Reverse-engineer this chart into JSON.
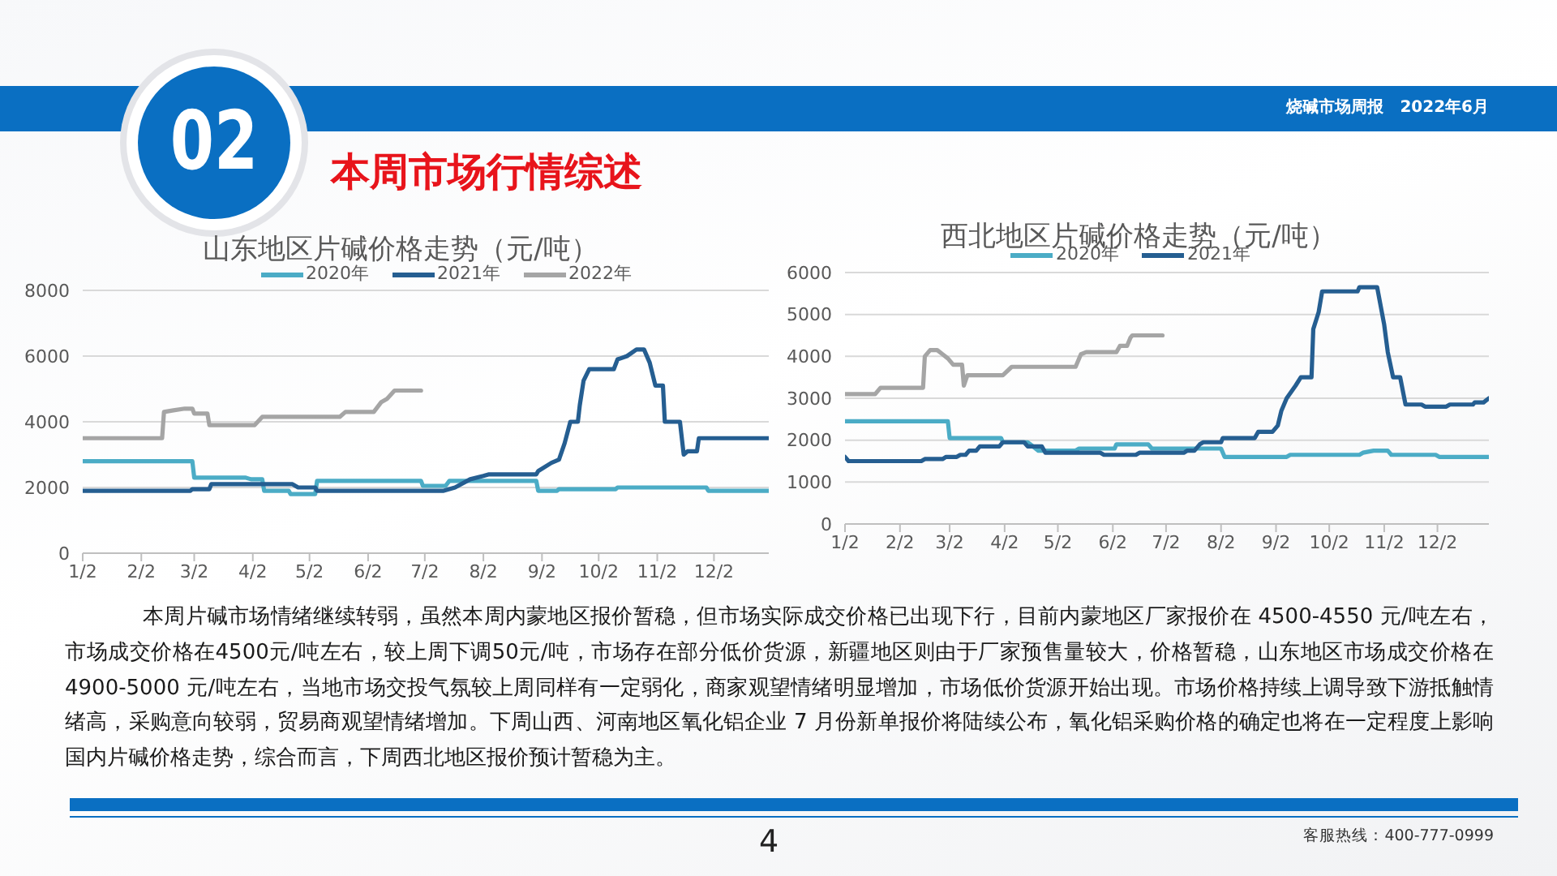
{
  "chart_data": [
    {
      "type": "other",
      "title": "本周市场行情综述",
      "annotations": [
        "02",
        "烧碱市场周报　2022年6月",
        "本周片碱市场情绪继续转弱，虽然本周内蒙地区报价暂稳，但市场实际成交价格已出现下行，目前内蒙地区厂家报价在 4500-4550 元/吨左右，市场成交价格在4500元/吨左右，较上周下调50元/吨，市场存在部分低价货源，新疆地区则由于厂家预售量较大，价格暂稳，山东地区市场成交价格在4900-5000 元/吨左右，当地市场交投气氛较上周同样有一定弱化，商家观望情绪明显增加，市场低价货源开始出现。市场价格持续上调导致下游抵触情绪高，采购意向较弱，贸易商观望情绪增加。下周山西、河南地区氧化铝企业 7 月份新单报价将陆续公布，氧化铝采购价格的确定也将在一定程度上影响国内片碱价格走势，综合而言，下周西北地区报价预计暂稳为主。",
        "4",
        "客服热线：400-777-0999"
      ]
    },
    {
      "type": "line",
      "title": "山东地区片碱价格走势（元/吨）",
      "legend": "top",
      "grid": "y",
      "xlim": [
        "--01-02",
        "--12-31"
      ],
      "xticks": [
        {
          "value": "--01-02",
          "label": "1/2"
        },
        {
          "value": "--02-02",
          "label": "2/2"
        },
        {
          "value": "--03-02",
          "label": "3/2"
        },
        {
          "value": "--04-02",
          "label": "4/2"
        },
        {
          "value": "--05-02",
          "label": "5/2"
        },
        {
          "value": "--06-02",
          "label": "6/2"
        },
        {
          "value": "--07-02",
          "label": "7/2"
        },
        {
          "value": "--08-02",
          "label": "8/2"
        },
        {
          "value": "--09-02",
          "label": "9/2"
        },
        {
          "value": "--10-02",
          "label": "10/2"
        },
        {
          "value": "--11-02",
          "label": "11/2"
        },
        {
          "value": "--12-02",
          "label": "12/2"
        }
      ],
      "ylim": [
        0,
        8000
      ],
      "yticks": [
        0,
        2000,
        4000,
        6000,
        8000
      ],
      "series": [
        {
          "name": "2020年",
          "color": "#4bacc6",
          "x": [
            "--01-02",
            "--03-01",
            "--03-02",
            "--03-29",
            "--04-01",
            "--04-07",
            "--04-08",
            "--04-21",
            "--04-22",
            "--05-05",
            "--05-06",
            "--06-30",
            "--07-01",
            "--07-13",
            "--07-15",
            "--08-30",
            "--08-31",
            "--09-10",
            "--09-11",
            "--10-11",
            "--10-12",
            "--11-28",
            "--11-29",
            "--12-31"
          ],
          "values": [
            2800,
            2800,
            2300,
            2300,
            2250,
            2250,
            1900,
            1900,
            1800,
            1800,
            2200,
            2200,
            2050,
            2050,
            2200,
            2200,
            1900,
            1900,
            1950,
            1950,
            2000,
            2000,
            1900,
            1900
          ]
        },
        {
          "name": "2021年",
          "color": "#255e91",
          "x": [
            "--01-02",
            "--02-28",
            "--03-01",
            "--03-10",
            "--03-11",
            "--04-23",
            "--04-26",
            "--05-05",
            "--05-06",
            "--07-12",
            "--07-18",
            "--07-26",
            "--08-02",
            "--08-05",
            "--08-30",
            "--08-31",
            "--09-07",
            "--09-11",
            "--09-14",
            "--09-17",
            "--09-21",
            "--09-22",
            "--09-24",
            "--09-27",
            "--10-10",
            "--10-12",
            "--10-17",
            "--10-22",
            "--10-26",
            "--10-29",
            "--11-01",
            "--11-05",
            "--11-06",
            "--11-14",
            "--11-16",
            "--11-18",
            "--11-23",
            "--11-24",
            "--12-31"
          ],
          "values": [
            1900,
            1900,
            1950,
            1950,
            2100,
            2100,
            2000,
            2000,
            1900,
            1900,
            2000,
            2250,
            2350,
            2400,
            2400,
            2500,
            2750,
            2850,
            3350,
            4000,
            4000,
            4500,
            5250,
            5600,
            5600,
            5900,
            6000,
            6200,
            6200,
            5800,
            5100,
            5100,
            4000,
            4000,
            3000,
            3100,
            3100,
            3500,
            3500
          ]
        },
        {
          "name": "2022年",
          "color": "#a5a5a5",
          "x": [
            "--01-02",
            "--02-13",
            "--02-14",
            "--02-19",
            "--02-25",
            "--03-01",
            "--03-02",
            "--03-09",
            "--03-10",
            "--04-03",
            "--04-07",
            "--05-18",
            "--05-21",
            "--06-05",
            "--06-09",
            "--06-12",
            "--06-16",
            "--06-30"
          ],
          "values": [
            3500,
            3500,
            4300,
            4350,
            4400,
            4400,
            4250,
            4250,
            3900,
            3900,
            4150,
            4150,
            4300,
            4300,
            4600,
            4700,
            4950,
            4950
          ]
        }
      ]
    },
    {
      "type": "line",
      "title": "西北地区片碱价格走势（元/吨）",
      "legend": "top",
      "grid": "y",
      "xlim": [
        "--01-02",
        "--12-31"
      ],
      "xticks": [
        {
          "value": "--01-02",
          "label": "1/2"
        },
        {
          "value": "--02-02",
          "label": "2/2"
        },
        {
          "value": "--03-02",
          "label": "3/2"
        },
        {
          "value": "--04-02",
          "label": "4/2"
        },
        {
          "value": "--05-02",
          "label": "5/2"
        },
        {
          "value": "--06-02",
          "label": "6/2"
        },
        {
          "value": "--07-02",
          "label": "7/2"
        },
        {
          "value": "--08-02",
          "label": "8/2"
        },
        {
          "value": "--09-02",
          "label": "9/2"
        },
        {
          "value": "--10-02",
          "label": "10/2"
        },
        {
          "value": "--11-02",
          "label": "11/2"
        },
        {
          "value": "--12-02",
          "label": "12/2"
        }
      ],
      "ylim": [
        0,
        6000
      ],
      "yticks": [
        0,
        1000,
        2000,
        3000,
        4000,
        5000,
        6000
      ],
      "series": [
        {
          "name": "2020年",
          "color": "#4bacc6",
          "x": [
            "--01-02",
            "--03-01",
            "--03-02",
            "--03-31",
            "--04-01",
            "--04-15",
            "--04-21",
            "--05-12",
            "--05-14",
            "--06-03",
            "--06-04",
            "--06-22",
            "--06-24",
            "--08-02",
            "--08-04",
            "--09-08",
            "--09-10",
            "--10-19",
            "--10-21",
            "--10-27",
            "--11-04",
            "--11-06",
            "--12-01",
            "--12-03",
            "--12-31"
          ],
          "values": [
            2450,
            2450,
            2050,
            2050,
            1950,
            1950,
            1750,
            1750,
            1800,
            1800,
            1900,
            1900,
            1800,
            1800,
            1600,
            1600,
            1650,
            1650,
            1700,
            1750,
            1750,
            1650,
            1650,
            1600,
            1600
          ]
        },
        {
          "name": "2021年",
          "color": "#255e91",
          "x": [
            "--01-02",
            "--01-04",
            "--02-14",
            "--02-16",
            "--02-26",
            "--02-28",
            "--03-06",
            "--03-08",
            "--03-11",
            "--03-13",
            "--03-17",
            "--03-19",
            "--03-30",
            "--04-01",
            "--04-13",
            "--04-15",
            "--04-23",
            "--04-25",
            "--05-26",
            "--05-28",
            "--06-15",
            "--06-17",
            "--07-12",
            "--07-14",
            "--07-18",
            "--07-21",
            "--07-23",
            "--08-02",
            "--08-03",
            "--08-21",
            "--08-23",
            "--08-31",
            "--09-03",
            "--09-05",
            "--09-08",
            "--09-13",
            "--09-16",
            "--09-22",
            "--09-23",
            "--09-26",
            "--09-28",
            "--10-18",
            "--10-19",
            "--10-29",
            "--11-02",
            "--11-04",
            "--11-07",
            "--11-11",
            "--11-14",
            "--11-23",
            "--11-25",
            "--12-07",
            "--12-09",
            "--12-22",
            "--12-23",
            "--12-28",
            "--12-31"
          ],
          "values": [
            1600,
            1500,
            1500,
            1550,
            1550,
            1600,
            1600,
            1650,
            1650,
            1750,
            1750,
            1850,
            1850,
            1950,
            1950,
            1850,
            1850,
            1700,
            1700,
            1650,
            1650,
            1700,
            1700,
            1750,
            1750,
            1900,
            1950,
            1950,
            2050,
            2050,
            2200,
            2200,
            2350,
            2700,
            3000,
            3300,
            3500,
            3500,
            4650,
            5050,
            5550,
            5550,
            5650,
            5650,
            4750,
            4100,
            3500,
            3500,
            2850,
            2850,
            2800,
            2800,
            2850,
            2850,
            2900,
            2900,
            3000
          ]
        },
        {
          "color": "#a5a5a5",
          "x": [
            "--01-02",
            "--01-19",
            "--01-22",
            "--02-15",
            "--02-16",
            "--02-19",
            "--02-23",
            "--02-26",
            "--03-01",
            "--03-04",
            "--03-09",
            "--03-10",
            "--03-12",
            "--04-01",
            "--04-06",
            "--05-12",
            "--05-15",
            "--05-18",
            "--06-04",
            "--06-06",
            "--06-10",
            "--06-12",
            "--06-13",
            "--06-30"
          ],
          "values": [
            3100,
            3100,
            3250,
            3250,
            4000,
            4150,
            4150,
            4050,
            3950,
            3800,
            3800,
            3300,
            3550,
            3550,
            3750,
            3750,
            4050,
            4100,
            4100,
            4250,
            4250,
            4450,
            4500,
            4500
          ]
        }
      ]
    }
  ]
}
